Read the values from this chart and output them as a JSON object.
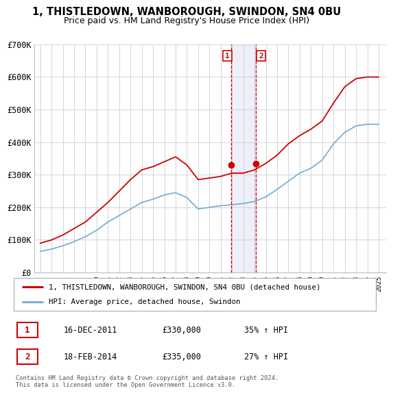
{
  "title": "1, THISTLEDOWN, WANBOROUGH, SWINDON, SN4 0BU",
  "subtitle": "Price paid vs. HM Land Registry's House Price Index (HPI)",
  "ylim": [
    0,
    700000
  ],
  "yticks": [
    0,
    100000,
    200000,
    300000,
    400000,
    500000,
    600000,
    700000
  ],
  "ytick_labels": [
    "£0",
    "£100K",
    "£200K",
    "£300K",
    "£400K",
    "£500K",
    "£600K",
    "£700K"
  ],
  "background_color": "#ffffff",
  "plot_bg_color": "#ffffff",
  "grid_color": "#cccccc",
  "red_line_color": "#cc0000",
  "blue_line_color": "#7bafd4",
  "transaction1": {
    "date": "16-DEC-2011",
    "price": "330,000",
    "hpi_pct": "35% ↑ HPI",
    "label": "1"
  },
  "transaction2": {
    "date": "18-FEB-2014",
    "price": "335,000",
    "hpi_pct": "27% ↑ HPI",
    "label": "2"
  },
  "legend_line1": "1, THISTLEDOWN, WANBOROUGH, SWINDON, SN4 0BU (detached house)",
  "legend_line2": "HPI: Average price, detached house, Swindon",
  "footnote": "Contains HM Land Registry data © Crown copyright and database right 2024.\nThis data is licensed under the Open Government Licence v3.0.",
  "years_x": [
    1995,
    1996,
    1997,
    1998,
    1999,
    2000,
    2001,
    2002,
    2003,
    2004,
    2005,
    2006,
    2007,
    2008,
    2009,
    2010,
    2011,
    2012,
    2013,
    2014,
    2015,
    2016,
    2017,
    2018,
    2019,
    2020,
    2021,
    2022,
    2023,
    2024,
    2025
  ],
  "red_y": [
    90000,
    100000,
    115000,
    135000,
    155000,
    185000,
    215000,
    250000,
    285000,
    315000,
    325000,
    340000,
    355000,
    330000,
    285000,
    290000,
    295000,
    305000,
    305000,
    315000,
    335000,
    360000,
    395000,
    420000,
    440000,
    465000,
    520000,
    570000,
    595000,
    600000,
    600000
  ],
  "blue_y": [
    65000,
    72000,
    82000,
    95000,
    110000,
    130000,
    155000,
    175000,
    195000,
    215000,
    225000,
    238000,
    245000,
    230000,
    195000,
    200000,
    205000,
    208000,
    212000,
    218000,
    232000,
    255000,
    280000,
    305000,
    320000,
    345000,
    395000,
    430000,
    450000,
    455000,
    455000
  ],
  "marker1_x": 2011.95,
  "marker1_y": 330000,
  "marker2_x": 2014.12,
  "marker2_y": 335000,
  "vline1_x": 2011.95,
  "vline2_x": 2014.12,
  "shade_x1": 2011.95,
  "shade_x2": 2014.12,
  "xlim_left": 1994.5,
  "xlim_right": 2025.7
}
